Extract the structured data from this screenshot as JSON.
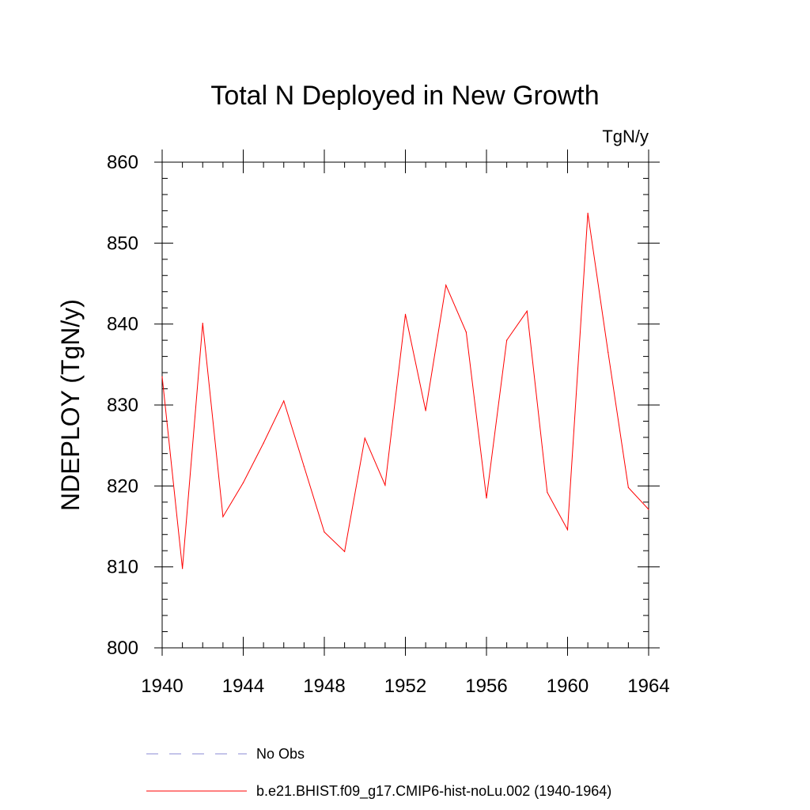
{
  "chart_data": {
    "type": "line",
    "title": "Total N Deployed in New Growth",
    "units_label": "TgN/y",
    "ylabel": "NDEPLOY  (TgN/y)",
    "xlabel": "",
    "xlim": [
      1940,
      1964
    ],
    "ylim": [
      800,
      860
    ],
    "xticks": [
      "1940",
      "1944",
      "1948",
      "1952",
      "1956",
      "1960",
      "1964"
    ],
    "yticks": [
      "800",
      "810",
      "820",
      "830",
      "840",
      "850",
      "860"
    ],
    "grid": false,
    "legend_position": "bottom",
    "colors": {
      "model": "#ff0000",
      "obs": "#8a8ad4"
    },
    "series": [
      {
        "name": "b.e21.BHIST.f09_g17.CMIP6-hist-noLu.002 (1940-1964)",
        "style": "solid",
        "x": [
          1940,
          1941,
          1942,
          1943,
          1944,
          1945,
          1946,
          1947,
          1948,
          1949,
          1950,
          1951,
          1952,
          1953,
          1954,
          1955,
          1956,
          1957,
          1958,
          1959,
          1960,
          1961,
          1962,
          1963,
          1964
        ],
        "values": [
          833.5,
          809.8,
          840.1,
          816.2,
          820.4,
          825.3,
          830.5,
          822.4,
          814.3,
          811.9,
          825.9,
          820.1,
          841.2,
          829.3,
          844.8,
          839.0,
          818.5,
          838.0,
          841.6,
          819.2,
          814.6,
          853.7,
          836.5,
          819.8,
          817.1
        ]
      }
    ],
    "legend": [
      {
        "label": "No Obs",
        "style": "dashed"
      },
      {
        "label": "b.e21.BHIST.f09_g17.CMIP6-hist-noLu.002 (1940-1964)",
        "style": "solid"
      }
    ]
  }
}
